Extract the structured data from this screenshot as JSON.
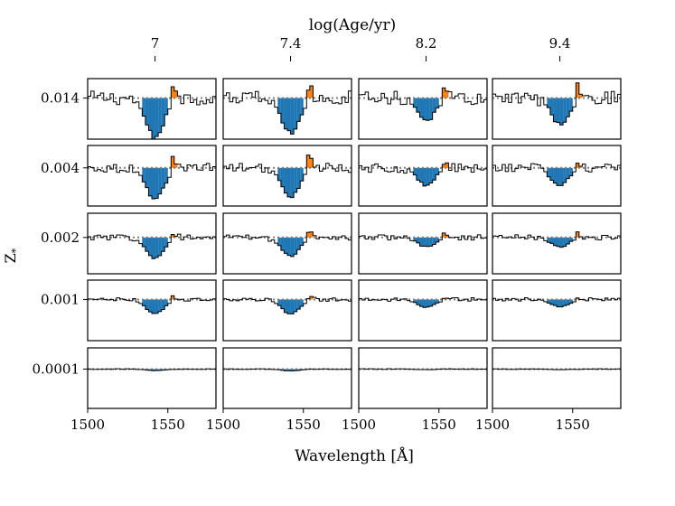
{
  "figure": {
    "xlabel": "Wavelength [Å]",
    "ylabel": "Z",
    "ylabel_sub": "*",
    "top_title": "log(Age/yr)"
  },
  "colors": {
    "absorption": "#1f77b4",
    "emission": "#ff7f0e",
    "spectrum": "#000000",
    "continuum": "#7f7f7f"
  },
  "chart_data": {
    "type": "line",
    "layout": "grid of step-spectrum panels (5 rows × 4 columns)",
    "col_labels": [
      "7",
      "7.4",
      "8.2",
      "9.4"
    ],
    "row_labels": [
      "0.014",
      "0.004",
      "0.002",
      "0.001",
      "0.0001"
    ],
    "xlim": [
      1500,
      1580
    ],
    "xticks": [
      1500,
      1550
    ],
    "features": {
      "absorption_center": 1542,
      "emission_center": 1553,
      "continuum": 1.0,
      "shaded_absorption_color": "absorption",
      "shaded_emission_color": "emission"
    },
    "absorption_depth": [
      [
        0.85,
        0.75,
        0.5,
        0.55
      ],
      [
        0.7,
        0.65,
        0.4,
        0.38
      ],
      [
        0.55,
        0.5,
        0.25,
        0.25
      ],
      [
        0.4,
        0.4,
        0.22,
        0.2
      ],
      [
        0.05,
        0.06,
        0.02,
        0.02
      ]
    ],
    "emission_height": [
      [
        0.45,
        0.3,
        0.25,
        0.3
      ],
      [
        0.3,
        0.28,
        0.2,
        0.18
      ],
      [
        0.18,
        0.2,
        0.12,
        0.12
      ],
      [
        0.12,
        0.12,
        0.08,
        0.07
      ],
      [
        0.0,
        0.0,
        0.0,
        0.0
      ]
    ],
    "noise_level": [
      0.3,
      0.2,
      0.14,
      0.1,
      0.02
    ]
  }
}
